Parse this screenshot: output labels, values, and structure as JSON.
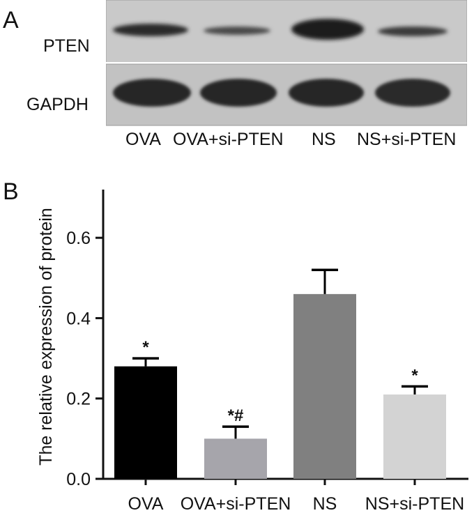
{
  "panel_a": {
    "letter": "A",
    "row_labels": [
      "PTEN",
      "GAPDH"
    ],
    "lane_labels": [
      "OVA",
      "OVA+si-PTEN",
      "NS",
      "NS+si-PTEN"
    ]
  },
  "panel_b": {
    "letter": "B"
  },
  "chart_data": {
    "type": "bar",
    "categories": [
      "OVA",
      "OVA+si-PTEN",
      "NS",
      "NS+si-PTEN"
    ],
    "values": [
      0.28,
      0.1,
      0.46,
      0.21
    ],
    "error_bars": [
      0.02,
      0.03,
      0.06,
      0.02
    ],
    "annotations": [
      "*",
      "*#",
      "",
      "*"
    ],
    "colors": [
      "#000000",
      "#a6a5ab",
      "#808080",
      "#d3d3d3"
    ],
    "title": "",
    "xlabel": "",
    "ylabel": "The relative expression of protein",
    "ylim": [
      0,
      0.72
    ],
    "yticks": [
      0.0,
      0.2,
      0.4,
      0.6
    ],
    "ytick_labels": [
      "0.0",
      "0.2",
      "0.4",
      "0.6"
    ],
    "grid": false
  }
}
